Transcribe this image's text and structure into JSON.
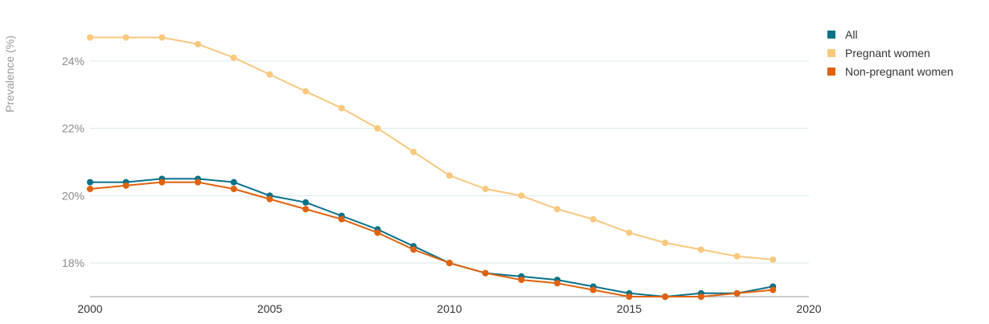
{
  "chart_data": {
    "type": "line",
    "title": "",
    "xlabel": "",
    "ylabel": "Prevalence (%)",
    "xlim": [
      2000,
      2020
    ],
    "ylim": [
      17,
      25
    ],
    "x_ticks": [
      "2000",
      "2005",
      "2010",
      "2015",
      "2020"
    ],
    "y_ticks": [
      "18%",
      "20%",
      "22%",
      "24%"
    ],
    "grid": "horizontal",
    "legend_position": "top-right",
    "x": [
      2000,
      2001,
      2002,
      2003,
      2004,
      2005,
      2006,
      2007,
      2008,
      2009,
      2010,
      2011,
      2012,
      2013,
      2014,
      2015,
      2016,
      2017,
      2018,
      2019
    ],
    "series": [
      {
        "name": "All",
        "color": "#0b7189",
        "values": [
          20.4,
          20.4,
          20.5,
          20.5,
          20.4,
          20.0,
          19.8,
          19.4,
          19.0,
          18.5,
          18.0,
          17.7,
          17.6,
          17.5,
          17.3,
          17.1,
          17.0,
          17.1,
          17.1,
          17.3
        ]
      },
      {
        "name": "Pregnant women",
        "color": "#f8c87e",
        "values": [
          24.7,
          24.7,
          24.7,
          24.5,
          24.1,
          23.6,
          23.1,
          22.6,
          22.0,
          21.3,
          20.6,
          20.2,
          20.0,
          19.6,
          19.3,
          18.9,
          18.6,
          18.4,
          18.2,
          18.1
        ]
      },
      {
        "name": "Non-pregnant women",
        "color": "#e0620c",
        "values": [
          20.2,
          20.3,
          20.4,
          20.4,
          20.2,
          19.9,
          19.6,
          19.3,
          18.9,
          18.4,
          18.0,
          17.7,
          17.5,
          17.4,
          17.2,
          17.0,
          17.0,
          17.0,
          17.1,
          17.2
        ]
      }
    ]
  }
}
